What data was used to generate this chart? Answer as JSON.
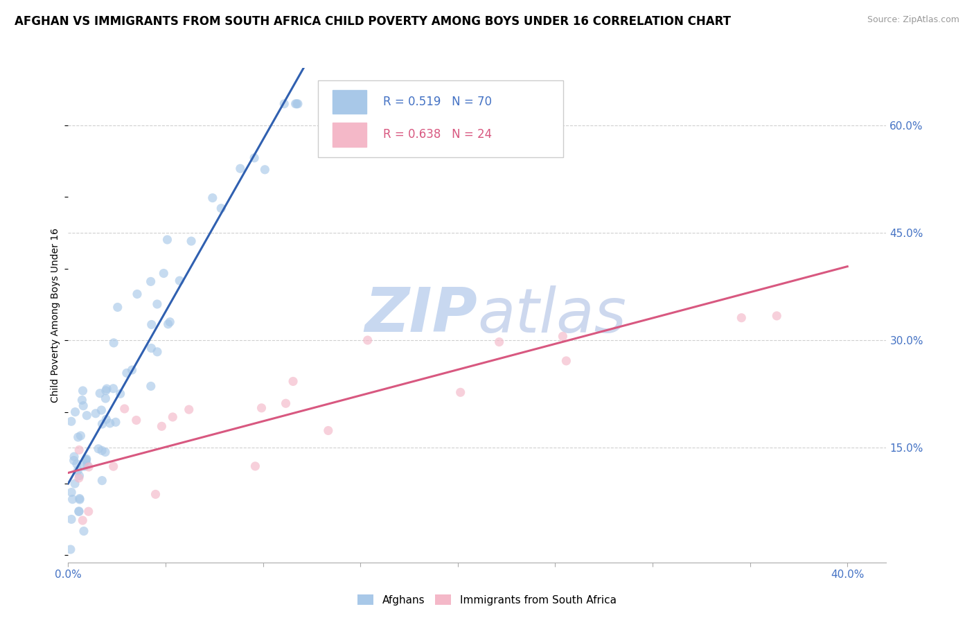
{
  "title": "AFGHAN VS IMMIGRANTS FROM SOUTH AFRICA CHILD POVERTY AMONG BOYS UNDER 16 CORRELATION CHART",
  "source": "Source: ZipAtlas.com",
  "ylabel": "Child Poverty Among Boys Under 16",
  "xlim": [
    0.0,
    0.42
  ],
  "ylim": [
    -0.01,
    0.68
  ],
  "x_ticks": [
    0.0,
    0.05,
    0.1,
    0.15,
    0.2,
    0.25,
    0.3,
    0.35,
    0.4
  ],
  "x_tick_labels": [
    "0.0%",
    "",
    "",
    "",
    "",
    "",
    "",
    "",
    "40.0%"
  ],
  "y_ticks_right": [
    0.15,
    0.3,
    0.45,
    0.6
  ],
  "y_tick_labels_right": [
    "15.0%",
    "30.0%",
    "45.0%",
    "60.0%"
  ],
  "legend1_r": "0.519",
  "legend1_n": "70",
  "legend2_r": "0.638",
  "legend2_n": "24",
  "color_afghan": "#a8c8e8",
  "color_sa": "#f4b8c8",
  "color_line_afghan": "#3060b0",
  "color_line_sa": "#d85880",
  "color_axis_tick": "#4472c4",
  "watermark_zip": "ZIP",
  "watermark_atlas": "atlas",
  "watermark_color": "#c8d8f0",
  "background_color": "#ffffff",
  "title_fontsize": 12,
  "tick_fontsize": 11,
  "grid_color": "#d0d0d0",
  "slope_afghan": 4.8,
  "intercept_afghan": 0.1,
  "slope_sa": 0.72,
  "intercept_sa": 0.115,
  "x_line_afghan_end": 0.135,
  "x_line_sa_end": 0.4
}
